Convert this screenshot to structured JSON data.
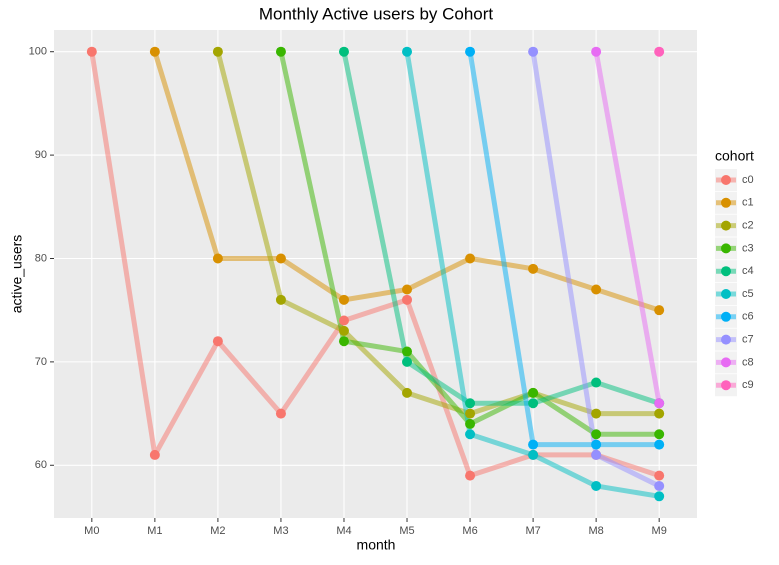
{
  "chart_data": {
    "type": "line",
    "title": "Monthly Active users by Cohort",
    "x_label": "month",
    "y_label": "active_users",
    "legend_title": "cohort",
    "categories": [
      "M0",
      "M1",
      "M2",
      "M3",
      "M4",
      "M5",
      "M6",
      "M7",
      "M8",
      "M9"
    ],
    "series": [
      {
        "name": "c0",
        "color": "#F8766D",
        "values": [
          100,
          61,
          72,
          65,
          74,
          76,
          59,
          61,
          61,
          59
        ]
      },
      {
        "name": "c1",
        "color": "#D89000",
        "values": [
          null,
          100,
          80,
          80,
          76,
          77,
          80,
          79,
          77,
          75
        ]
      },
      {
        "name": "c2",
        "color": "#A3A500",
        "values": [
          null,
          null,
          100,
          76,
          73,
          67,
          65,
          67,
          65,
          65
        ]
      },
      {
        "name": "c3",
        "color": "#39B600",
        "values": [
          null,
          null,
          null,
          100,
          72,
          71,
          64,
          67,
          63,
          63
        ]
      },
      {
        "name": "c4",
        "color": "#00BF7D",
        "values": [
          null,
          null,
          null,
          null,
          100,
          70,
          66,
          66,
          68,
          66
        ]
      },
      {
        "name": "c5",
        "color": "#00BFC4",
        "values": [
          null,
          null,
          null,
          null,
          null,
          100,
          63,
          61,
          58,
          57
        ]
      },
      {
        "name": "c6",
        "color": "#00B0F6",
        "values": [
          null,
          null,
          null,
          null,
          null,
          null,
          100,
          62,
          62,
          62
        ]
      },
      {
        "name": "c7",
        "color": "#9590FF",
        "values": [
          null,
          null,
          null,
          null,
          null,
          null,
          null,
          100,
          61,
          58
        ]
      },
      {
        "name": "c8",
        "color": "#E76BF3",
        "values": [
          null,
          null,
          null,
          null,
          null,
          null,
          null,
          null,
          100,
          66
        ]
      },
      {
        "name": "c9",
        "color": "#FF62BC",
        "values": [
          null,
          null,
          null,
          null,
          null,
          null,
          null,
          null,
          null,
          100
        ]
      }
    ],
    "ylim": [
      54.9,
      102.1
    ],
    "yticks": [
      60,
      70,
      80,
      90,
      100
    ],
    "grid": true,
    "legend": "right"
  }
}
